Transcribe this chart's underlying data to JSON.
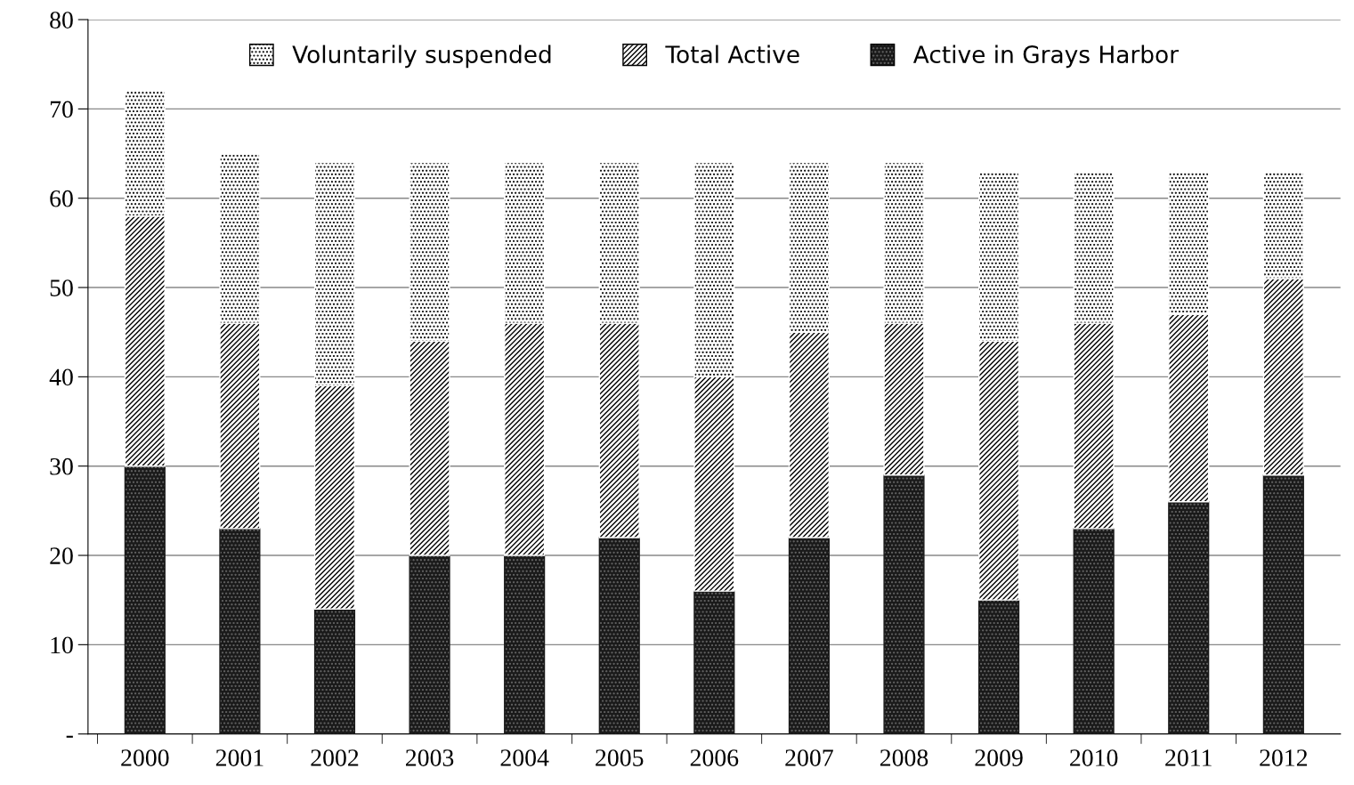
{
  "chart_data": {
    "type": "bar",
    "stacked": true,
    "categories": [
      "2000",
      "2001",
      "2002",
      "2003",
      "2004",
      "2005",
      "2006",
      "2007",
      "2008",
      "2009",
      "2010",
      "2011",
      "2012"
    ],
    "series": [
      {
        "name": "Active in Grays Harbor",
        "color": "#1a1a1a",
        "values": [
          30,
          23,
          14,
          20,
          20,
          22,
          16,
          22,
          29,
          15,
          23,
          26,
          29
        ]
      },
      {
        "name": "Total Active",
        "color": "#ffffff",
        "values": [
          28,
          23,
          25,
          24,
          26,
          24,
          24,
          23,
          17,
          29,
          23,
          21,
          22
        ]
      },
      {
        "name": "Voluntarily suspended",
        "color": "#ffffff",
        "values": [
          14,
          19,
          25,
          20,
          18,
          18,
          24,
          19,
          18,
          19,
          17,
          16,
          12
        ]
      }
    ],
    "ylim": [
      0,
      80
    ],
    "yticks": [
      {
        "value": 0,
        "label": "-"
      },
      10,
      20,
      30,
      40,
      50,
      60,
      70,
      80
    ],
    "grid": "y",
    "legend": "top"
  }
}
